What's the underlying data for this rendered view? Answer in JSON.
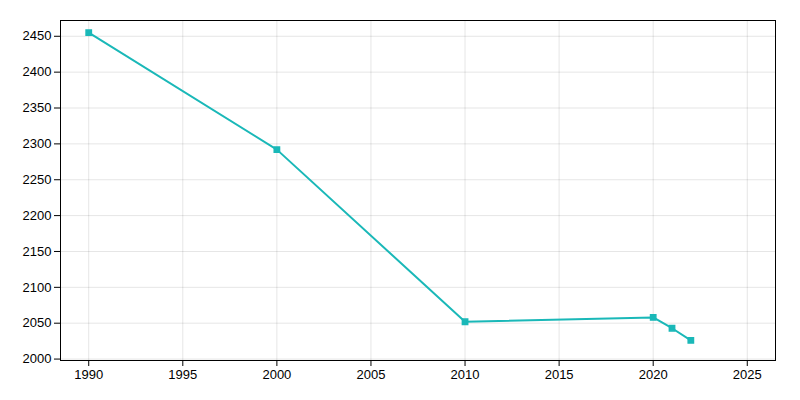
{
  "chart_data": {
    "type": "line",
    "x": [
      1990,
      2000,
      2010,
      2020,
      2021,
      2022
    ],
    "values": [
      2455,
      2292,
      2052,
      2058,
      2043,
      2026
    ],
    "color": "#1ab8b8",
    "marker": "square",
    "xlim": [
      1988.5,
      2026.5
    ],
    "ylim": [
      1998,
      2472
    ],
    "xticks": [
      1990,
      1995,
      2000,
      2005,
      2010,
      2015,
      2020,
      2025
    ],
    "yticks": [
      2000,
      2050,
      2100,
      2150,
      2200,
      2250,
      2300,
      2350,
      2400,
      2450
    ],
    "grid": true
  }
}
